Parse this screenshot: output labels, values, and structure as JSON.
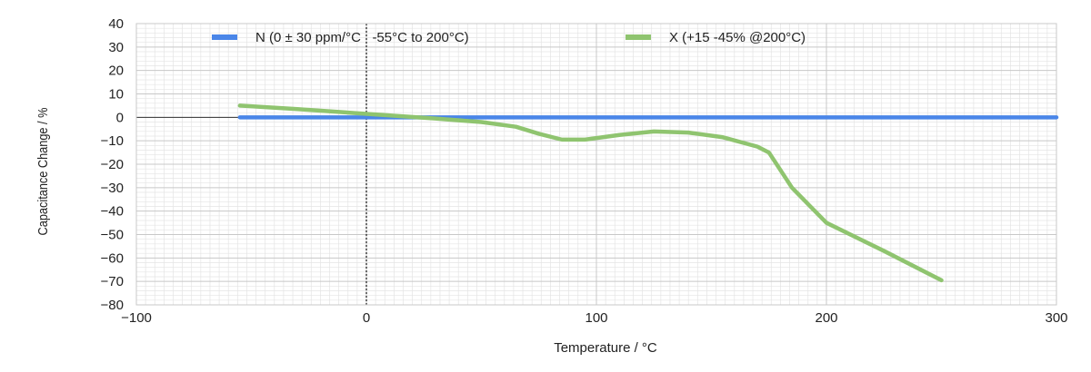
{
  "chart_data": {
    "type": "line",
    "title": "",
    "xlabel": "Temperature / °C",
    "ylabel": "Capacitance Change / %",
    "xlim": [
      -100,
      300
    ],
    "ylim": [
      -80,
      40
    ],
    "x_ticks": [
      -100,
      0,
      100,
      200,
      300
    ],
    "y_ticks": [
      40,
      30,
      20,
      10,
      0,
      -10,
      -20,
      -30,
      -40,
      -50,
      -60,
      -70,
      -80
    ],
    "grid": true,
    "legend_position": "top",
    "series": [
      {
        "name": "N (0 ± 30 ppm/°C   -55°C to 200°C)",
        "color": "#4a86e8",
        "points": [
          [
            -55,
            0
          ],
          [
            300,
            0
          ]
        ]
      },
      {
        "name": "X (+15 -45% @200°C)",
        "color": "#8fc46f",
        "points": [
          [
            -55,
            5
          ],
          [
            -30,
            3.5
          ],
          [
            0,
            1.5
          ],
          [
            30,
            -0.5
          ],
          [
            50,
            -2
          ],
          [
            65,
            -4
          ],
          [
            75,
            -7
          ],
          [
            85,
            -9.5
          ],
          [
            95,
            -9.5
          ],
          [
            110,
            -7.5
          ],
          [
            125,
            -6
          ],
          [
            140,
            -6.5
          ],
          [
            155,
            -8.5
          ],
          [
            170,
            -12.5
          ],
          [
            175,
            -15
          ],
          [
            185,
            -30
          ],
          [
            200,
            -45
          ],
          [
            225,
            -57
          ],
          [
            250,
            -69.5
          ]
        ]
      }
    ]
  }
}
